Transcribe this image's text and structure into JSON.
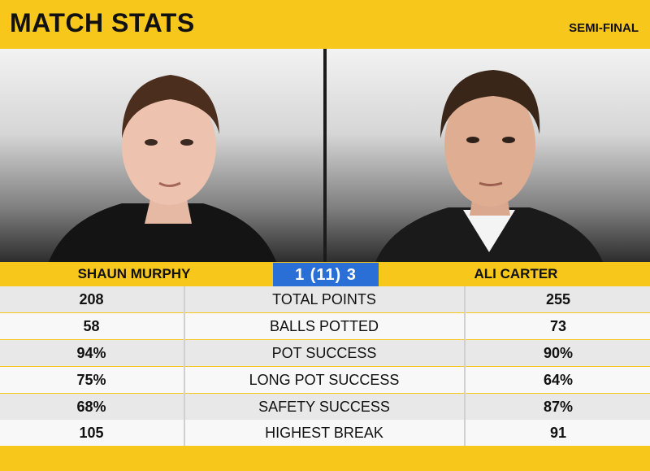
{
  "header": {
    "title": "MATCH STATS",
    "round": "SEMI-FINAL"
  },
  "players": {
    "left": {
      "name": "SHAUN MURPHY"
    },
    "right": {
      "name": "ALI CARTER"
    }
  },
  "score": {
    "text": "1  (11)  3"
  },
  "stats": [
    {
      "label": "TOTAL POINTS",
      "left": "208",
      "right": "255"
    },
    {
      "label": "BALLS POTTED",
      "left": "58",
      "right": "73"
    },
    {
      "label": "POT SUCCESS",
      "left": "94%",
      "right": "90%"
    },
    {
      "label": "LONG POT SUCCESS",
      "left": "75%",
      "right": "64%"
    },
    {
      "label": "SAFETY SUCCESS",
      "left": "68%",
      "right": "87%"
    },
    {
      "label": "HIGHEST BREAK",
      "left": "105",
      "right": "91"
    }
  ],
  "colors": {
    "accent_yellow": "#f7c71c",
    "score_blue": "#2a6fd6"
  }
}
